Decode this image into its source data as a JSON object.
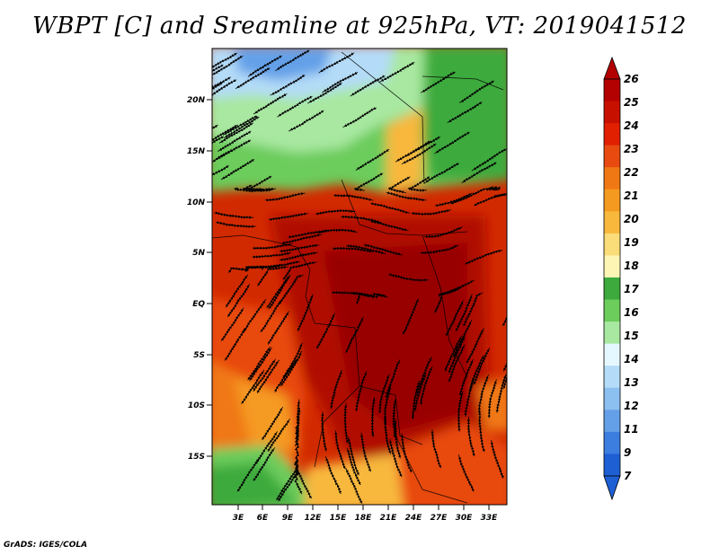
{
  "title": "WBPT [C] and Sreamline at 925hPa, VT: 2019041512",
  "credit": "GrADS: IGES/COLA",
  "map": {
    "lat_ticks": [
      "20N",
      "15N",
      "10N",
      "5N",
      "EQ",
      "5S",
      "10S",
      "15S"
    ],
    "lon_ticks": [
      "3E",
      "6E",
      "9E",
      "12E",
      "15E",
      "18E",
      "21E",
      "24E",
      "27E",
      "30E",
      "33E"
    ]
  },
  "colorbar": {
    "labels": [
      "26",
      "25",
      "24",
      "23",
      "22",
      "21",
      "20",
      "19",
      "18",
      "17",
      "16",
      "15",
      "14",
      "13",
      "12",
      "11",
      "9",
      "7"
    ],
    "colors": [
      "#b30000",
      "#c81000",
      "#e02000",
      "#e84a10",
      "#f07814",
      "#f59a20",
      "#f8b83c",
      "#fadc78",
      "#fdf5b4",
      "#3caa3c",
      "#6ccc5c",
      "#a8e8a0",
      "#e6f8ff",
      "#b4dcf8",
      "#8cc0f0",
      "#64a0e8",
      "#3c7ee0",
      "#1e5fd4"
    ]
  }
}
